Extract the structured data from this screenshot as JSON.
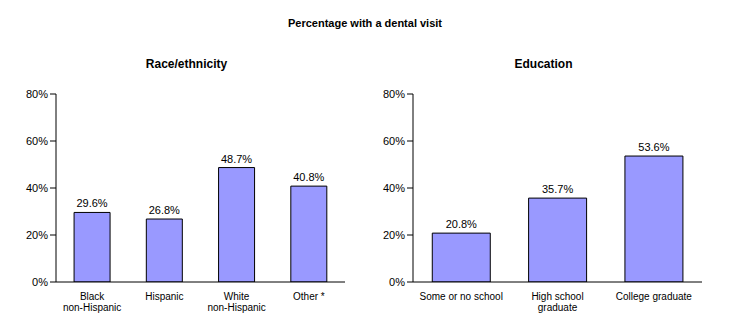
{
  "title": "Percentage with a dental visit",
  "chart_data": [
    {
      "type": "bar",
      "title": "Race/ethnicity",
      "categories": [
        "Black non-Hispanic",
        "Hispanic",
        "White non-Hispanic",
        "Other *"
      ],
      "values": [
        29.6,
        26.8,
        48.7,
        40.8
      ],
      "value_labels": [
        "29.6%",
        "26.8%",
        "48.7%",
        "40.8%"
      ],
      "color": "#9999ff",
      "ylim": [
        0,
        80
      ],
      "yticks": [
        {
          "value": 0,
          "label": "0%"
        },
        {
          "value": 20,
          "label": "20%"
        },
        {
          "value": 40,
          "label": "40%"
        },
        {
          "value": 60,
          "label": "60%"
        },
        {
          "value": 80,
          "label": "80%"
        }
      ],
      "data_labels": true,
      "grid": false
    },
    {
      "type": "bar",
      "title": "Education",
      "categories": [
        "Some or no school",
        "High school graduate",
        "College graduate"
      ],
      "values": [
        20.8,
        35.7,
        53.6
      ],
      "value_labels": [
        "20.8%",
        "35.7%",
        "53.6%"
      ],
      "color": "#9999ff",
      "ylim": [
        0,
        80
      ],
      "yticks": [
        {
          "value": 0,
          "label": "0%"
        },
        {
          "value": 20,
          "label": "20%"
        },
        {
          "value": 40,
          "label": "40%"
        },
        {
          "value": 60,
          "label": "60%"
        },
        {
          "value": 80,
          "label": "80%"
        }
      ],
      "data_labels": true,
      "grid": false
    }
  ]
}
